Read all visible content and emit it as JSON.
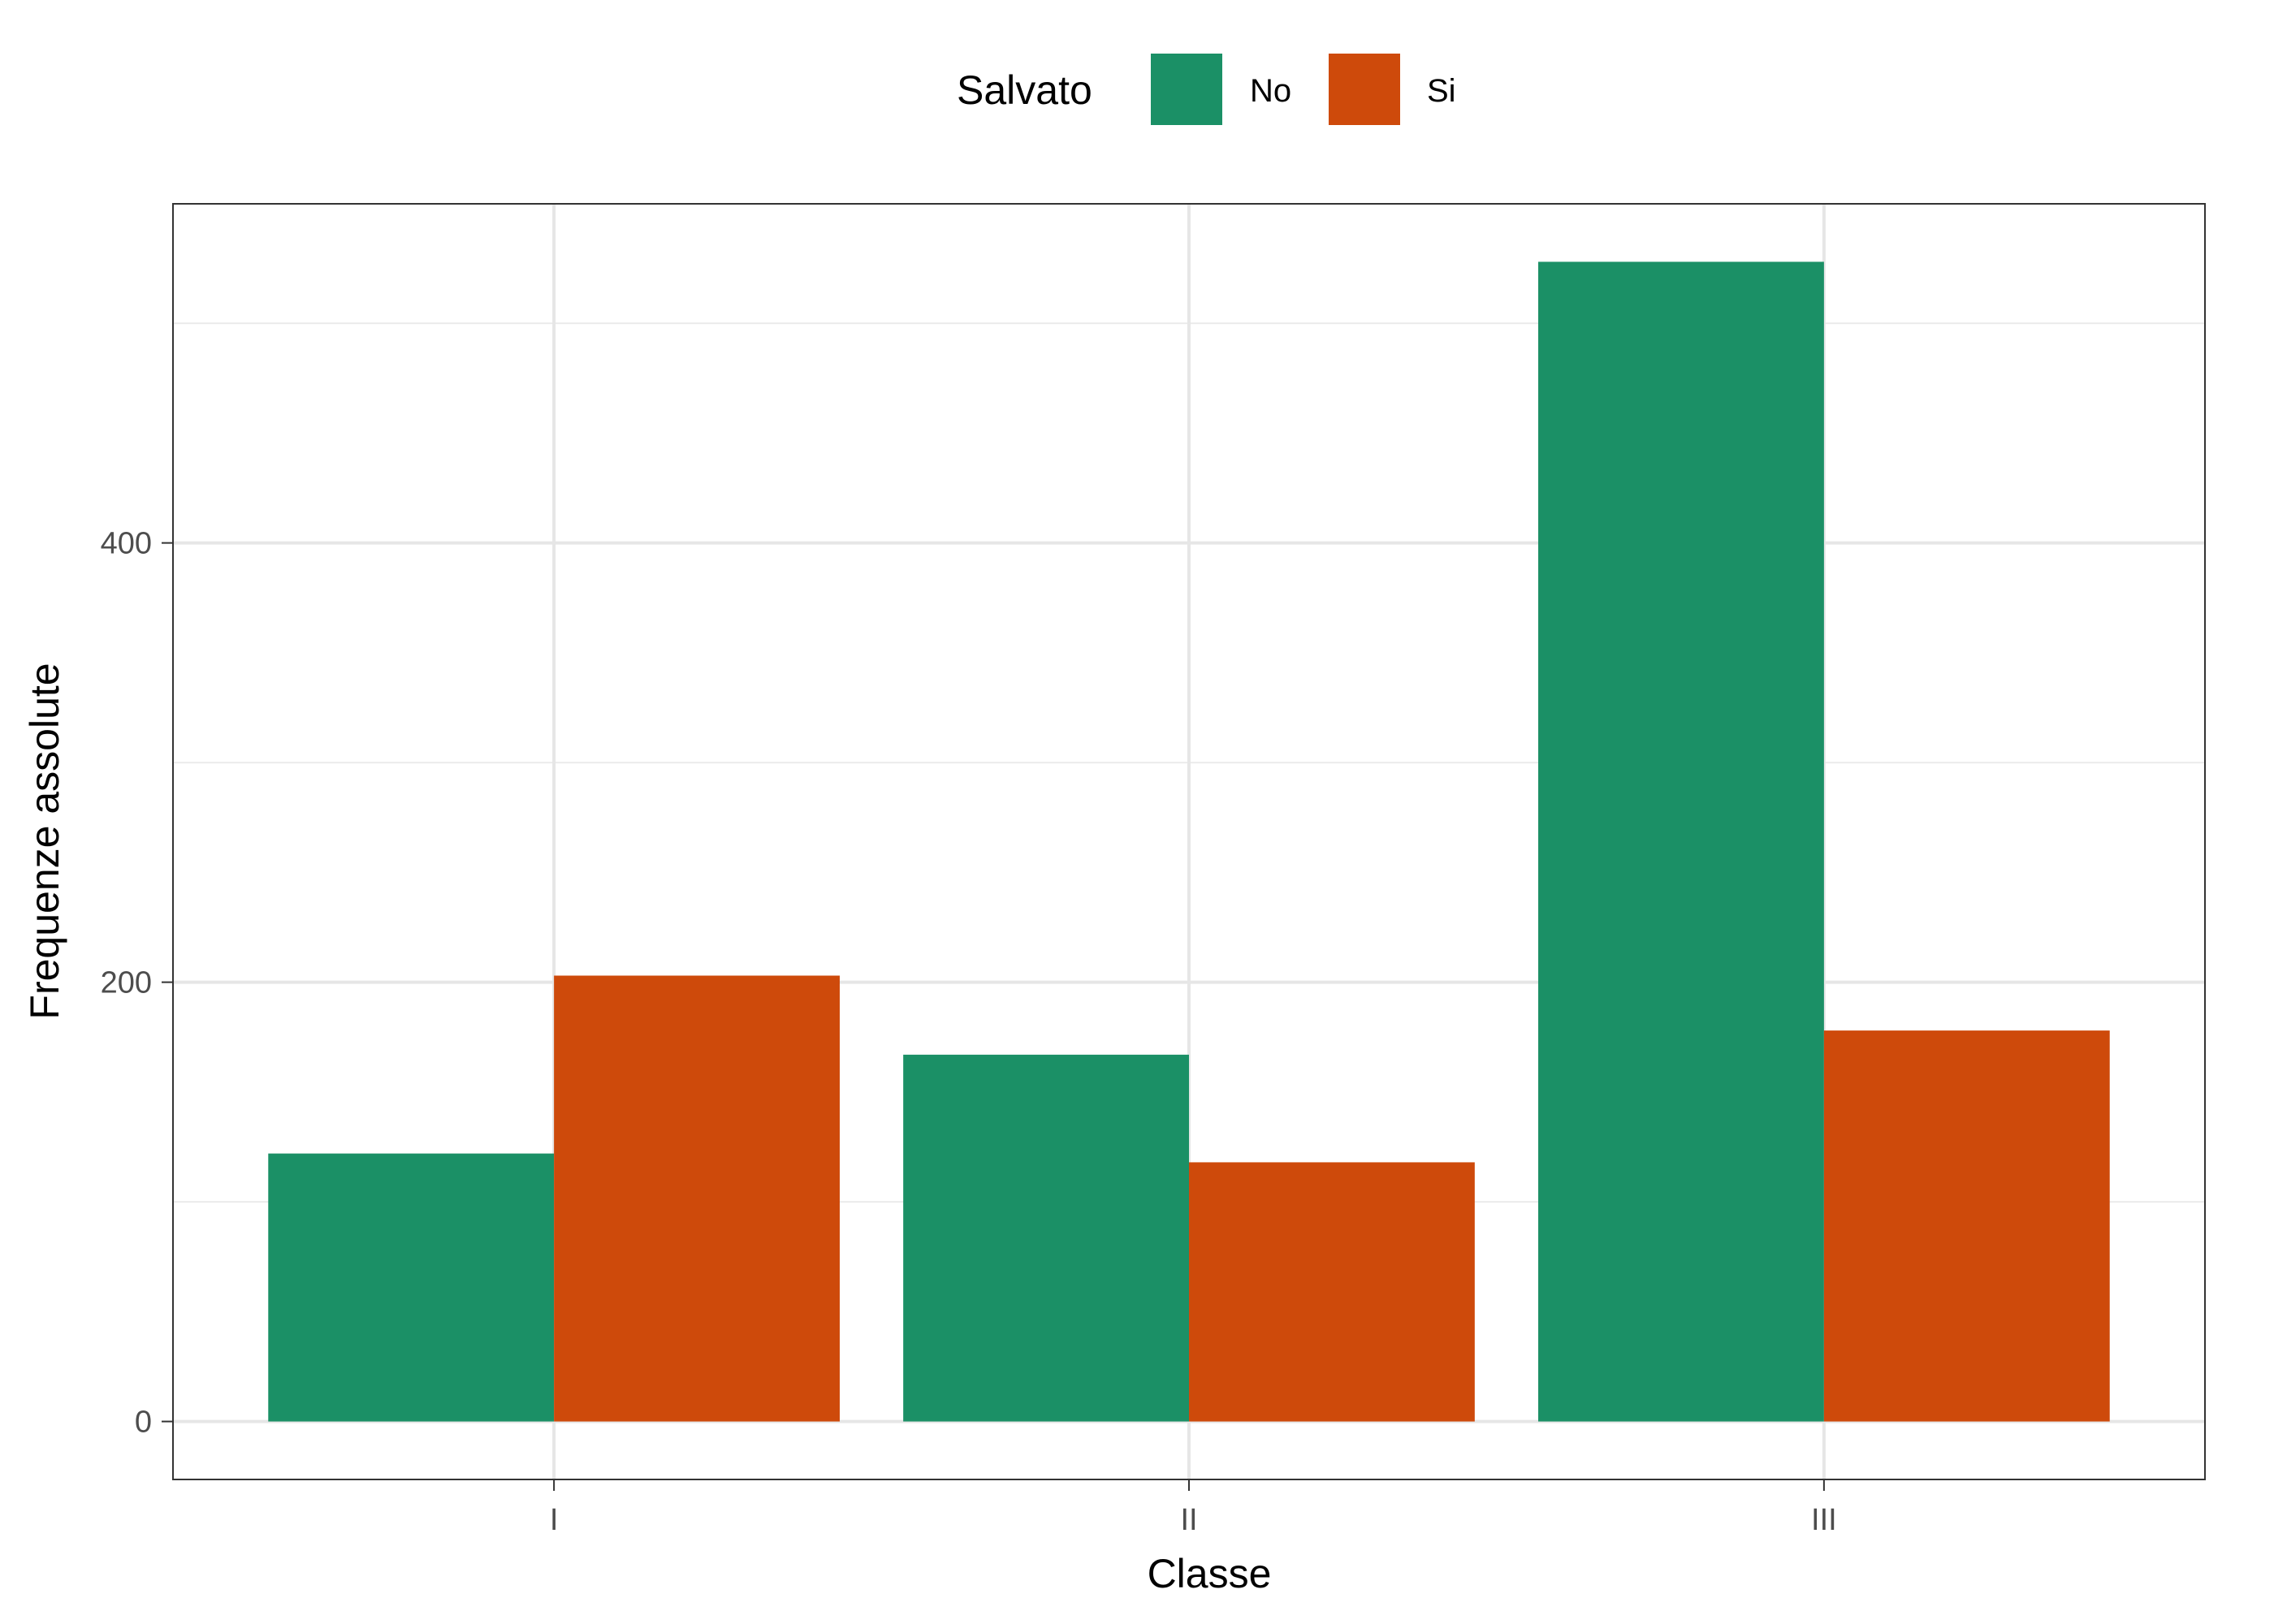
{
  "chart_data": {
    "type": "bar",
    "categories": [
      "I",
      "II",
      "III"
    ],
    "series": [
      {
        "name": "No",
        "values": [
          122,
          167,
          528
        ]
      },
      {
        "name": "Si",
        "values": [
          203,
          118,
          178
        ]
      }
    ],
    "xlabel": "Classe",
    "ylabel": "Frequenze assolute",
    "ylim": [
      -26.4,
      554.4
    ],
    "yticks": [
      0,
      200,
      400
    ],
    "ytick_labels": [
      "0",
      "200",
      "400"
    ],
    "minor_gridlines_y": [
      100,
      300,
      500
    ],
    "grid": true,
    "legend": {
      "title": "Salvato",
      "position": "top"
    },
    "colors": {
      "No": "#1b9066",
      "Si": "#ce4a0b"
    }
  }
}
